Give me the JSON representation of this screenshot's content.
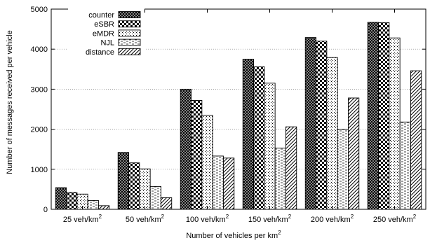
{
  "chart_data": {
    "type": "bar",
    "title": "",
    "xlabel": "Number of vehicles per km",
    "xlabel_sup": "2",
    "ylabel": "Number of messages received per vehicle",
    "ylim": [
      0,
      5000
    ],
    "yticks": [
      0,
      1000,
      2000,
      3000,
      4000,
      5000
    ],
    "grid": true,
    "legend_position": "top-left",
    "categories": [
      {
        "text": "25 veh/km",
        "sup": "2"
      },
      {
        "text": "50 veh/km",
        "sup": "2"
      },
      {
        "text": "100 veh/km",
        "sup": "2"
      },
      {
        "text": "150 veh/km",
        "sup": "2"
      },
      {
        "text": "200 veh/km",
        "sup": "2"
      },
      {
        "text": "250 veh/km",
        "sup": "2"
      }
    ],
    "series": [
      {
        "name": "counter",
        "pattern": "crosshatch-dense",
        "values": [
          540,
          1420,
          3000,
          3750,
          4290,
          4670
        ]
      },
      {
        "name": "eSBR",
        "pattern": "checker",
        "values": [
          420,
          1160,
          2720,
          3560,
          4200,
          4660
        ]
      },
      {
        "name": "eMDR",
        "pattern": "dots",
        "values": [
          380,
          1010,
          2350,
          3150,
          3790,
          4280
        ]
      },
      {
        "name": "NJL",
        "pattern": "dashes",
        "values": [
          220,
          570,
          1330,
          1530,
          2000,
          2180
        ]
      },
      {
        "name": "distance",
        "pattern": "diagonal",
        "values": [
          90,
          290,
          1280,
          2060,
          2780,
          3460
        ]
      }
    ]
  }
}
